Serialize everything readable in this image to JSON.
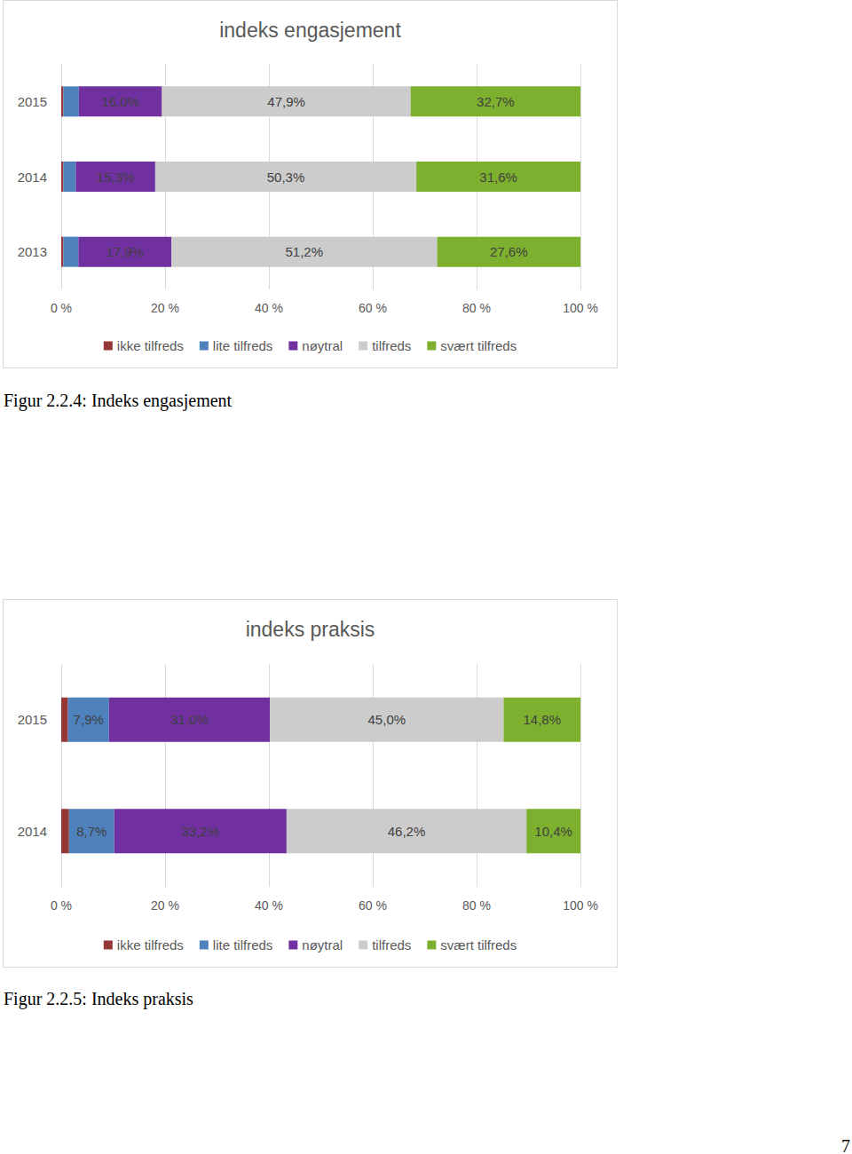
{
  "chart_data": [
    {
      "type": "bar",
      "title": "indeks engasjement",
      "caption": "Figur 2.2.4: Indeks engasjement",
      "orientation": "horizontal",
      "stacked": true,
      "data_labels": true,
      "grid": true,
      "legend": "bottom",
      "categories": [
        "2015",
        "2014",
        "2013"
      ],
      "series": [
        {
          "name": "ikke tilfreds",
          "color": "#953735",
          "values": [
            0.4,
            0.4,
            0.4
          ],
          "value_labels": [
            null,
            null,
            null
          ]
        },
        {
          "name": "lite tilfreds",
          "color": "#4f81bd",
          "values": [
            3.0,
            2.4,
            2.9
          ],
          "value_labels": [
            null,
            null,
            null
          ]
        },
        {
          "name": "nøytral",
          "color": "#7030a0",
          "values": [
            16.0,
            15.3,
            17.9
          ],
          "value_labels": [
            "16,0%",
            "15,3%",
            "17,9%"
          ]
        },
        {
          "name": "tilfreds",
          "color": "#cccccc",
          "values": [
            47.9,
            50.3,
            51.2
          ],
          "value_labels": [
            "47,9%",
            "50,3%",
            "51,2%"
          ]
        },
        {
          "name": "svært tilfreds",
          "color": "#7db02e",
          "values": [
            32.7,
            31.6,
            27.6
          ],
          "value_labels": [
            "32,7%",
            "31,6%",
            "27,6%"
          ]
        }
      ],
      "xlim": [
        0,
        100
      ],
      "xticks": [
        {
          "value": 0,
          "label": "0 %"
        },
        {
          "value": 20,
          "label": "20 %"
        },
        {
          "value": 40,
          "label": "40 %"
        },
        {
          "value": 60,
          "label": "60 %"
        },
        {
          "value": 80,
          "label": "80 %"
        },
        {
          "value": 100,
          "label": "100 %"
        }
      ]
    },
    {
      "type": "bar",
      "title": "indeks praksis",
      "caption": "Figur 2.2.5: Indeks praksis",
      "orientation": "horizontal",
      "stacked": true,
      "data_labels": true,
      "grid": true,
      "legend": "bottom",
      "categories": [
        "2015",
        "2014"
      ],
      "series": [
        {
          "name": "ikke tilfreds",
          "color": "#953735",
          "values": [
            1.3,
            1.5
          ],
          "value_labels": [
            null,
            null
          ]
        },
        {
          "name": "lite tilfreds",
          "color": "#4f81bd",
          "values": [
            7.9,
            8.7
          ],
          "value_labels": [
            "7,9%",
            "8,7%"
          ]
        },
        {
          "name": "nøytral",
          "color": "#7030a0",
          "values": [
            31.0,
            33.2
          ],
          "value_labels": [
            "31,0%",
            "33,2%"
          ]
        },
        {
          "name": "tilfreds",
          "color": "#cccccc",
          "values": [
            45.0,
            46.2
          ],
          "value_labels": [
            "45,0%",
            "46,2%"
          ]
        },
        {
          "name": "svært tilfreds",
          "color": "#7db02e",
          "values": [
            14.8,
            10.4
          ],
          "value_labels": [
            "14,8%",
            "10,4%"
          ]
        }
      ],
      "xlim": [
        0,
        100
      ],
      "xticks": [
        {
          "value": 0,
          "label": "0 %"
        },
        {
          "value": 20,
          "label": "20 %"
        },
        {
          "value": 40,
          "label": "40 %"
        },
        {
          "value": 60,
          "label": "60 %"
        },
        {
          "value": 80,
          "label": "80 %"
        },
        {
          "value": 100,
          "label": "100 %"
        }
      ]
    }
  ],
  "page_number": 7
}
